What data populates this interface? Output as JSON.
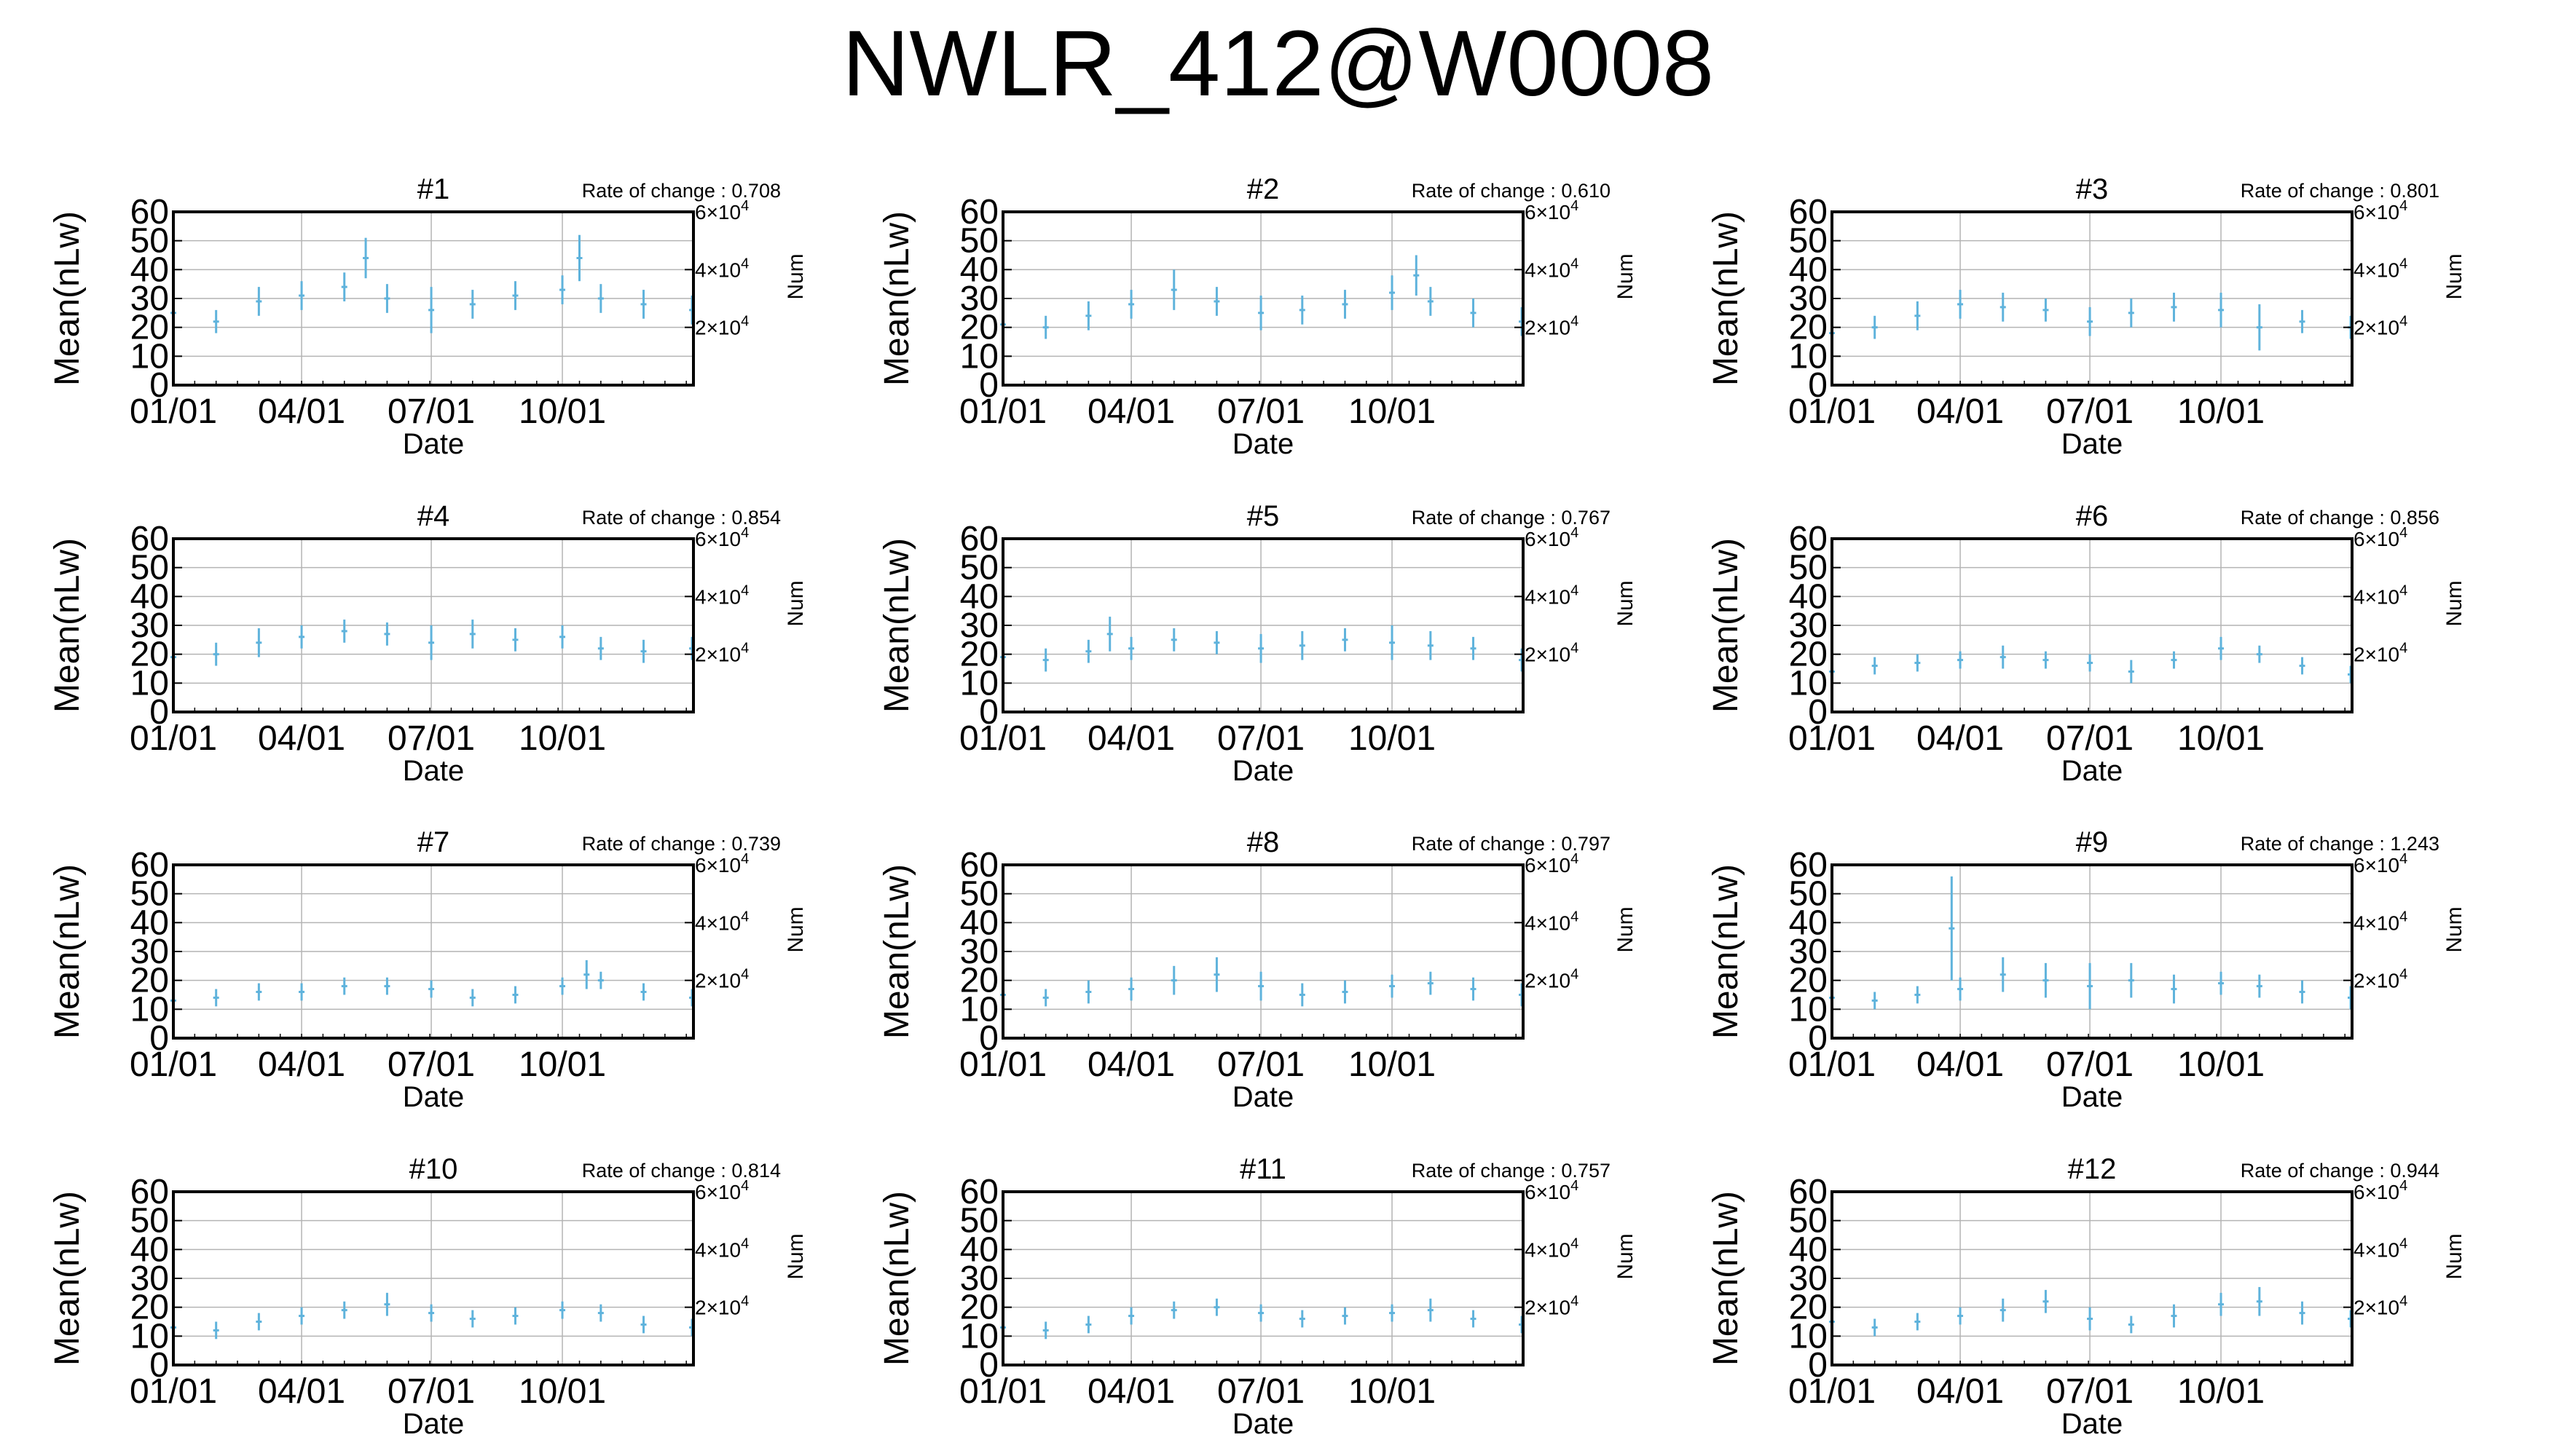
{
  "page": {
    "title": "NWLR_412@W0008"
  },
  "style": {
    "series_color": "#5fb3dc",
    "axis_color": "#000000",
    "grid_color": "#b4b4b4"
  },
  "shared_axes": {
    "y_left_ticks": [
      "0",
      "10",
      "20",
      "30",
      "40",
      "50",
      "60"
    ],
    "y_right_ticks": [
      {
        "value": 20000,
        "base": "2×10",
        "exp": "4"
      },
      {
        "value": 40000,
        "base": "4×10",
        "exp": "4"
      },
      {
        "value": 60000,
        "base": "6×10",
        "exp": "4"
      }
    ],
    "x_ticks": [
      "01/01",
      "04/01",
      "07/01",
      "10/01"
    ],
    "rate_prefix": "Rate of change : "
  },
  "chart_data": [
    {
      "type": "scatter",
      "title": "#1",
      "rate_of_change": "0.708",
      "xlabel": "Date",
      "ylabel": "Mean(nLw)",
      "y2label": "Num",
      "ylim": [
        0,
        60
      ],
      "y2lim": [
        0,
        60000
      ],
      "xlim": [
        0,
        365
      ],
      "x_tick_days": [
        0,
        90,
        181,
        273
      ],
      "grid": true,
      "series": [
        {
          "style": "errorbar",
          "x": [
            0,
            30,
            60,
            90,
            120,
            135,
            150,
            181,
            210,
            240,
            273,
            285,
            300,
            330,
            364
          ],
          "y": [
            25,
            22,
            29,
            31,
            34,
            44,
            30,
            26,
            28,
            31,
            33,
            44,
            30,
            28,
            26
          ],
          "spread": [
            5,
            4,
            5,
            5,
            5,
            7,
            5,
            8,
            5,
            5,
            5,
            8,
            5,
            5,
            5
          ]
        }
      ]
    },
    {
      "type": "scatter",
      "title": "#2",
      "rate_of_change": "0.610",
      "xlabel": "Date",
      "ylabel": "Mean(nLw)",
      "y2label": "Num",
      "ylim": [
        0,
        60
      ],
      "y2lim": [
        0,
        60000
      ],
      "xlim": [
        0,
        365
      ],
      "x_tick_days": [
        0,
        90,
        181,
        273
      ],
      "grid": true,
      "series": [
        {
          "style": "errorbar",
          "x": [
            0,
            30,
            60,
            90,
            120,
            150,
            181,
            210,
            240,
            273,
            290,
            300,
            330,
            364
          ],
          "y": [
            21,
            20,
            24,
            28,
            33,
            29,
            25,
            26,
            28,
            32,
            38,
            29,
            25,
            22
          ],
          "spread": [
            4,
            4,
            5,
            5,
            7,
            5,
            6,
            5,
            5,
            6,
            7,
            5,
            5,
            5
          ]
        }
      ]
    },
    {
      "type": "scatter",
      "title": "#3",
      "rate_of_change": "0.801",
      "xlabel": "Date",
      "ylabel": "Mean(nLw)",
      "y2label": "Num",
      "ylim": [
        0,
        60
      ],
      "y2lim": [
        0,
        60000
      ],
      "xlim": [
        0,
        365
      ],
      "x_tick_days": [
        0,
        90,
        181,
        273
      ],
      "grid": true,
      "series": [
        {
          "style": "errorbar",
          "x": [
            0,
            30,
            60,
            90,
            120,
            150,
            181,
            210,
            240,
            273,
            300,
            330,
            364
          ],
          "y": [
            18,
            20,
            24,
            28,
            27,
            26,
            22,
            25,
            27,
            26,
            20,
            22,
            20
          ],
          "spread": [
            4,
            4,
            5,
            5,
            5,
            4,
            5,
            5,
            5,
            6,
            8,
            4,
            4
          ]
        }
      ]
    },
    {
      "type": "scatter",
      "title": "#4",
      "rate_of_change": "0.854",
      "xlabel": "Date",
      "ylabel": "Mean(nLw)",
      "y2label": "Num",
      "ylim": [
        0,
        60
      ],
      "y2lim": [
        0,
        60000
      ],
      "xlim": [
        0,
        365
      ],
      "x_tick_days": [
        0,
        90,
        181,
        273
      ],
      "grid": true,
      "series": [
        {
          "style": "errorbar",
          "x": [
            0,
            30,
            60,
            90,
            120,
            150,
            181,
            210,
            240,
            273,
            300,
            330,
            364
          ],
          "y": [
            19,
            20,
            24,
            26,
            28,
            27,
            24,
            27,
            25,
            26,
            22,
            21,
            22
          ],
          "spread": [
            4,
            4,
            5,
            4,
            4,
            4,
            6,
            5,
            4,
            4,
            4,
            4,
            4
          ]
        }
      ]
    },
    {
      "type": "scatter",
      "title": "#5",
      "rate_of_change": "0.767",
      "xlabel": "Date",
      "ylabel": "Mean(nLw)",
      "y2label": "Num",
      "ylim": [
        0,
        60
      ],
      "y2lim": [
        0,
        60000
      ],
      "xlim": [
        0,
        365
      ],
      "x_tick_days": [
        0,
        90,
        181,
        273
      ],
      "grid": true,
      "series": [
        {
          "style": "errorbar",
          "x": [
            0,
            30,
            60,
            75,
            90,
            120,
            150,
            181,
            210,
            240,
            273,
            300,
            330,
            364
          ],
          "y": [
            19,
            18,
            21,
            27,
            22,
            25,
            24,
            22,
            23,
            25,
            24,
            23,
            22,
            18
          ],
          "spread": [
            4,
            4,
            4,
            6,
            4,
            4,
            4,
            5,
            5,
            4,
            6,
            5,
            4,
            4
          ]
        }
      ]
    },
    {
      "type": "scatter",
      "title": "#6",
      "rate_of_change": "0.856",
      "xlabel": "Date",
      "ylabel": "Mean(nLw)",
      "y2label": "Num",
      "ylim": [
        0,
        60
      ],
      "y2lim": [
        0,
        60000
      ],
      "xlim": [
        0,
        365
      ],
      "x_tick_days": [
        0,
        90,
        181,
        273
      ],
      "grid": true,
      "series": [
        {
          "style": "errorbar",
          "x": [
            0,
            30,
            60,
            90,
            120,
            150,
            181,
            210,
            240,
            273,
            300,
            330,
            364
          ],
          "y": [
            14,
            16,
            17,
            18,
            19,
            18,
            17,
            14,
            18,
            22,
            20,
            16,
            13
          ],
          "spread": [
            3,
            3,
            3,
            3,
            4,
            3,
            3,
            4,
            3,
            4,
            3,
            3,
            3
          ]
        }
      ]
    },
    {
      "type": "scatter",
      "title": "#7",
      "rate_of_change": "0.739",
      "xlabel": "Date",
      "ylabel": "Mean(nLw)",
      "y2label": "Num",
      "ylim": [
        0,
        60
      ],
      "y2lim": [
        0,
        60000
      ],
      "xlim": [
        0,
        365
      ],
      "x_tick_days": [
        0,
        90,
        181,
        273
      ],
      "grid": true,
      "series": [
        {
          "style": "errorbar",
          "x": [
            0,
            30,
            60,
            90,
            120,
            150,
            181,
            210,
            240,
            273,
            290,
            300,
            330,
            364
          ],
          "y": [
            13,
            14,
            16,
            16,
            18,
            18,
            17,
            14,
            15,
            18,
            22,
            20,
            16,
            14
          ],
          "spread": [
            3,
            3,
            3,
            3,
            3,
            3,
            3,
            3,
            3,
            3,
            5,
            3,
            3,
            3
          ]
        }
      ]
    },
    {
      "type": "scatter",
      "title": "#8",
      "rate_of_change": "0.797",
      "xlabel": "Date",
      "ylabel": "Mean(nLw)",
      "y2label": "Num",
      "ylim": [
        0,
        60
      ],
      "y2lim": [
        0,
        60000
      ],
      "xlim": [
        0,
        365
      ],
      "x_tick_days": [
        0,
        90,
        181,
        273
      ],
      "grid": true,
      "series": [
        {
          "style": "errorbar",
          "x": [
            0,
            30,
            60,
            90,
            120,
            150,
            181,
            210,
            240,
            273,
            300,
            330,
            364
          ],
          "y": [
            15,
            14,
            16,
            17,
            20,
            22,
            18,
            15,
            16,
            18,
            19,
            17,
            15
          ],
          "spread": [
            3,
            3,
            4,
            4,
            5,
            6,
            5,
            4,
            4,
            4,
            4,
            4,
            4
          ]
        }
      ]
    },
    {
      "type": "scatter",
      "title": "#9",
      "rate_of_change": "1.243",
      "xlabel": "Date",
      "ylabel": "Mean(nLw)",
      "y2label": "Num",
      "ylim": [
        0,
        60
      ],
      "y2lim": [
        0,
        60000
      ],
      "xlim": [
        0,
        365
      ],
      "x_tick_days": [
        0,
        90,
        181,
        273
      ],
      "grid": true,
      "series": [
        {
          "style": "errorbar",
          "x": [
            0,
            30,
            60,
            84,
            90,
            120,
            150,
            181,
            210,
            240,
            273,
            300,
            330,
            364
          ],
          "y": [
            14,
            13,
            15,
            38,
            17,
            22,
            20,
            18,
            20,
            17,
            19,
            18,
            16,
            14
          ],
          "spread": [
            3,
            3,
            3,
            18,
            4,
            6,
            6,
            8,
            6,
            5,
            4,
            4,
            4,
            4
          ]
        }
      ]
    },
    {
      "type": "scatter",
      "title": "#10",
      "rate_of_change": "0.814",
      "xlabel": "Date",
      "ylabel": "Mean(nLw)",
      "y2label": "Num",
      "ylim": [
        0,
        60
      ],
      "y2lim": [
        0,
        60000
      ],
      "xlim": [
        0,
        365
      ],
      "x_tick_days": [
        0,
        90,
        181,
        273
      ],
      "grid": true,
      "series": [
        {
          "style": "errorbar",
          "x": [
            0,
            30,
            60,
            90,
            120,
            150,
            181,
            210,
            240,
            273,
            300,
            330,
            364
          ],
          "y": [
            13,
            12,
            15,
            17,
            19,
            21,
            18,
            16,
            17,
            19,
            18,
            14,
            13
          ],
          "spread": [
            3,
            3,
            3,
            3,
            3,
            4,
            3,
            3,
            3,
            3,
            3,
            3,
            3
          ]
        }
      ]
    },
    {
      "type": "scatter",
      "title": "#11",
      "rate_of_change": "0.757",
      "xlabel": "Date",
      "ylabel": "Mean(nLw)",
      "y2label": "Num",
      "ylim": [
        0,
        60
      ],
      "y2lim": [
        0,
        60000
      ],
      "xlim": [
        0,
        365
      ],
      "x_tick_days": [
        0,
        90,
        181,
        273
      ],
      "grid": true,
      "series": [
        {
          "style": "errorbar",
          "x": [
            0,
            30,
            60,
            90,
            120,
            150,
            181,
            210,
            240,
            273,
            300,
            330,
            364
          ],
          "y": [
            13,
            12,
            14,
            17,
            19,
            20,
            18,
            16,
            17,
            18,
            19,
            16,
            14
          ],
          "spread": [
            3,
            3,
            3,
            3,
            3,
            3,
            3,
            3,
            3,
            3,
            4,
            3,
            3
          ]
        }
      ]
    },
    {
      "type": "scatter",
      "title": "#12",
      "rate_of_change": "0.944",
      "xlabel": "Date",
      "ylabel": "Mean(nLw)",
      "y2label": "Num",
      "ylim": [
        0,
        60
      ],
      "y2lim": [
        0,
        60000
      ],
      "xlim": [
        0,
        365
      ],
      "x_tick_days": [
        0,
        90,
        181,
        273
      ],
      "grid": true,
      "series": [
        {
          "style": "errorbar",
          "x": [
            0,
            30,
            60,
            90,
            120,
            150,
            181,
            210,
            240,
            273,
            300,
            330,
            364
          ],
          "y": [
            15,
            13,
            15,
            17,
            19,
            22,
            16,
            14,
            17,
            21,
            22,
            18,
            16
          ],
          "spread": [
            3,
            3,
            3,
            3,
            4,
            4,
            4,
            3,
            4,
            4,
            5,
            4,
            3
          ]
        }
      ]
    }
  ]
}
